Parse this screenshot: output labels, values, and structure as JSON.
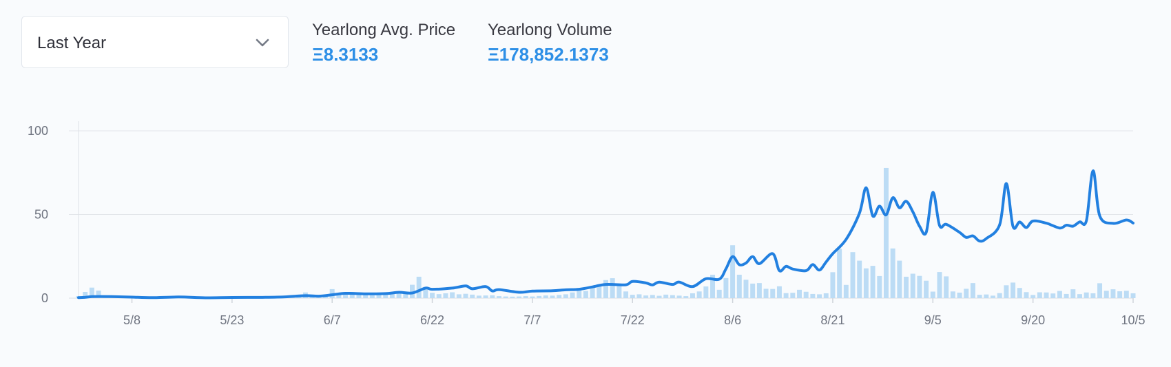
{
  "period_select": {
    "selected": "Last Year",
    "icon": "chevron-down-icon"
  },
  "stats": {
    "avg_price_label": "Yearlong Avg. Price",
    "avg_price_value": "Ξ8.3133",
    "volume_label": "Yearlong Volume",
    "volume_value": "Ξ178,852.1373"
  },
  "colors": {
    "line": "#2280e0",
    "bar": "#bcdcf5",
    "accent": "#2d8fe6"
  },
  "chart_data": {
    "type": "bar+line",
    "title": "",
    "xlabel": "",
    "ylabel": "",
    "ylim": [
      0,
      100
    ],
    "yticks": [
      0,
      50,
      100
    ],
    "grid": true,
    "x_start": "2023-04-30",
    "x_end": "2023-10-05",
    "xticks": [
      {
        "date": "2023-05-08",
        "label": "5/8"
      },
      {
        "date": "2023-05-23",
        "label": "5/23"
      },
      {
        "date": "2023-06-07",
        "label": "6/7"
      },
      {
        "date": "2023-06-22",
        "label": "6/22"
      },
      {
        "date": "2023-07-07",
        "label": "7/7"
      },
      {
        "date": "2023-07-22",
        "label": "7/22"
      },
      {
        "date": "2023-08-06",
        "label": "8/6"
      },
      {
        "date": "2023-08-21",
        "label": "8/21"
      },
      {
        "date": "2023-09-05",
        "label": "9/5"
      },
      {
        "date": "2023-09-20",
        "label": "9/20"
      },
      {
        "date": "2023-10-05",
        "label": "10/5"
      }
    ],
    "series": [
      {
        "type": "line",
        "points": [
          [
            "2023-04-30",
            0.3
          ],
          [
            "2023-05-01",
            0.5
          ],
          [
            "2023-05-02",
            0.9
          ],
          [
            "2023-05-03",
            1.0
          ],
          [
            "2023-05-05",
            0.9
          ],
          [
            "2023-05-08",
            0.6
          ],
          [
            "2023-05-11",
            0.3
          ],
          [
            "2023-05-15",
            0.7
          ],
          [
            "2023-05-19",
            0.2
          ],
          [
            "2023-05-23",
            0.4
          ],
          [
            "2023-05-28",
            0.5
          ],
          [
            "2023-05-31",
            0.8
          ],
          [
            "2023-06-03",
            1.5
          ],
          [
            "2023-06-05",
            1.2
          ],
          [
            "2023-06-07",
            2.0
          ],
          [
            "2023-06-09",
            2.9
          ],
          [
            "2023-06-12",
            2.6
          ],
          [
            "2023-06-15",
            2.7
          ],
          [
            "2023-06-17",
            3.5
          ],
          [
            "2023-06-19",
            3.1
          ],
          [
            "2023-06-21",
            6.0
          ],
          [
            "2023-06-22",
            5.3
          ],
          [
            "2023-06-25",
            6.0
          ],
          [
            "2023-06-27",
            7.3
          ],
          [
            "2023-06-28",
            5.6
          ],
          [
            "2023-06-30",
            6.9
          ],
          [
            "2023-07-01",
            4.3
          ],
          [
            "2023-07-02",
            5.1
          ],
          [
            "2023-07-05",
            3.5
          ],
          [
            "2023-07-07",
            4.2
          ],
          [
            "2023-07-10",
            4.4
          ],
          [
            "2023-07-12",
            5.0
          ],
          [
            "2023-07-14",
            5.3
          ],
          [
            "2023-07-16",
            6.7
          ],
          [
            "2023-07-18",
            8.2
          ],
          [
            "2023-07-21",
            8.0
          ],
          [
            "2023-07-22",
            10.0
          ],
          [
            "2023-07-24",
            9.1
          ],
          [
            "2023-07-25",
            7.9
          ],
          [
            "2023-07-26",
            9.6
          ],
          [
            "2023-07-28",
            8.2
          ],
          [
            "2023-07-29",
            9.6
          ],
          [
            "2023-07-31",
            6.9
          ],
          [
            "2023-08-02",
            11.6
          ],
          [
            "2023-08-04",
            11.3
          ],
          [
            "2023-08-05",
            17.5
          ],
          [
            "2023-08-06",
            24.8
          ],
          [
            "2023-08-07",
            20.0
          ],
          [
            "2023-08-08",
            21.0
          ],
          [
            "2023-08-09",
            24.8
          ],
          [
            "2023-08-10",
            20.6
          ],
          [
            "2023-08-12",
            26.6
          ],
          [
            "2023-08-13",
            16.4
          ],
          [
            "2023-08-14",
            19.0
          ],
          [
            "2023-08-15",
            17.4
          ],
          [
            "2023-08-17",
            16.4
          ],
          [
            "2023-08-18",
            20.1
          ],
          [
            "2023-08-19",
            16.8
          ],
          [
            "2023-08-20",
            21.6
          ],
          [
            "2023-08-21",
            26.6
          ],
          [
            "2023-08-23",
            35.1
          ],
          [
            "2023-08-25",
            50.8
          ],
          [
            "2023-08-26",
            66.0
          ],
          [
            "2023-08-27",
            49.1
          ],
          [
            "2023-08-28",
            55.0
          ],
          [
            "2023-08-29",
            49.8
          ],
          [
            "2023-08-30",
            60.0
          ],
          [
            "2023-08-31",
            54.0
          ],
          [
            "2023-09-01",
            57.9
          ],
          [
            "2023-09-02",
            51.6
          ],
          [
            "2023-09-03",
            43.0
          ],
          [
            "2023-09-04",
            39.3
          ],
          [
            "2023-09-05",
            63.2
          ],
          [
            "2023-09-06",
            43.4
          ],
          [
            "2023-09-07",
            44.1
          ],
          [
            "2023-09-09",
            39.3
          ],
          [
            "2023-09-10",
            36.3
          ],
          [
            "2023-09-11",
            37.2
          ],
          [
            "2023-09-12",
            34.1
          ],
          [
            "2023-09-13",
            35.6
          ],
          [
            "2023-09-15",
            43.8
          ],
          [
            "2023-09-16",
            68.5
          ],
          [
            "2023-09-17",
            42.9
          ],
          [
            "2023-09-18",
            45.5
          ],
          [
            "2023-09-19",
            42.2
          ],
          [
            "2023-09-20",
            46.1
          ],
          [
            "2023-09-22",
            44.8
          ],
          [
            "2023-09-24",
            41.9
          ],
          [
            "2023-09-25",
            43.6
          ],
          [
            "2023-09-26",
            43.0
          ],
          [
            "2023-09-27",
            45.6
          ],
          [
            "2023-09-28",
            46.3
          ],
          [
            "2023-09-29",
            76.1
          ],
          [
            "2023-09-30",
            49.1
          ],
          [
            "2023-10-02",
            44.7
          ],
          [
            "2023-10-04",
            46.7
          ],
          [
            "2023-10-05",
            44.9
          ]
        ]
      },
      {
        "type": "bar",
        "points": [
          [
            "2023-04-30",
            1.2
          ],
          [
            "2023-05-01",
            3.7
          ],
          [
            "2023-05-02",
            6.3
          ],
          [
            "2023-05-03",
            4.5
          ],
          [
            "2023-05-04",
            1.2
          ],
          [
            "2023-05-05",
            0.8
          ],
          [
            "2023-05-06",
            0.6
          ],
          [
            "2023-05-07",
            0.5
          ],
          [
            "2023-05-08",
            0.6
          ],
          [
            "2023-05-09",
            0.5
          ],
          [
            "2023-05-10",
            0.3
          ],
          [
            "2023-05-11",
            0.4
          ],
          [
            "2023-05-12",
            0.3
          ],
          [
            "2023-05-13",
            0.5
          ],
          [
            "2023-05-14",
            0.4
          ],
          [
            "2023-05-15",
            0.3
          ],
          [
            "2023-05-16",
            0.2
          ],
          [
            "2023-05-17",
            0.3
          ],
          [
            "2023-05-18",
            0.4
          ],
          [
            "2023-05-19",
            0.2
          ],
          [
            "2023-05-20",
            0.3
          ],
          [
            "2023-05-21",
            0.4
          ],
          [
            "2023-05-22",
            0.3
          ],
          [
            "2023-05-23",
            0.5
          ],
          [
            "2023-05-24",
            0.4
          ],
          [
            "2023-05-25",
            0.3
          ],
          [
            "2023-05-26",
            0.4
          ],
          [
            "2023-05-27",
            0.6
          ],
          [
            "2023-05-28",
            0.7
          ],
          [
            "2023-05-29",
            0.5
          ],
          [
            "2023-05-30",
            0.6
          ],
          [
            "2023-05-31",
            1.0
          ],
          [
            "2023-06-01",
            1.4
          ],
          [
            "2023-06-02",
            2.1
          ],
          [
            "2023-06-03",
            3.4
          ],
          [
            "2023-06-04",
            1.8
          ],
          [
            "2023-06-05",
            1.2
          ],
          [
            "2023-06-06",
            1.5
          ],
          [
            "2023-06-07",
            5.4
          ],
          [
            "2023-06-08",
            2.9
          ],
          [
            "2023-06-09",
            2.0
          ],
          [
            "2023-06-10",
            2.2
          ],
          [
            "2023-06-11",
            1.9
          ],
          [
            "2023-06-12",
            2.4
          ],
          [
            "2023-06-13",
            1.7
          ],
          [
            "2023-06-14",
            2.0
          ],
          [
            "2023-06-15",
            2.6
          ],
          [
            "2023-06-16",
            2.9
          ],
          [
            "2023-06-17",
            3.2
          ],
          [
            "2023-06-18",
            2.7
          ],
          [
            "2023-06-19",
            8.0
          ],
          [
            "2023-06-20",
            12.8
          ],
          [
            "2023-06-21",
            6.7
          ],
          [
            "2023-06-22",
            3.2
          ],
          [
            "2023-06-23",
            2.4
          ],
          [
            "2023-06-24",
            2.9
          ],
          [
            "2023-06-25",
            3.5
          ],
          [
            "2023-06-26",
            2.3
          ],
          [
            "2023-06-27",
            2.6
          ],
          [
            "2023-06-28",
            2.1
          ],
          [
            "2023-06-29",
            1.5
          ],
          [
            "2023-06-30",
            1.6
          ],
          [
            "2023-07-01",
            1.7
          ],
          [
            "2023-07-02",
            1.2
          ],
          [
            "2023-07-03",
            1.0
          ],
          [
            "2023-07-04",
            0.9
          ],
          [
            "2023-07-05",
            1.0
          ],
          [
            "2023-07-06",
            1.2
          ],
          [
            "2023-07-07",
            1.0
          ],
          [
            "2023-07-08",
            1.3
          ],
          [
            "2023-07-09",
            1.6
          ],
          [
            "2023-07-10",
            1.5
          ],
          [
            "2023-07-11",
            1.9
          ],
          [
            "2023-07-12",
            2.3
          ],
          [
            "2023-07-13",
            3.4
          ],
          [
            "2023-07-14",
            5.5
          ],
          [
            "2023-07-15",
            4.3
          ],
          [
            "2023-07-16",
            7.0
          ],
          [
            "2023-07-17",
            8.3
          ],
          [
            "2023-07-18",
            10.8
          ],
          [
            "2023-07-19",
            11.9
          ],
          [
            "2023-07-20",
            8.5
          ],
          [
            "2023-07-21",
            4.0
          ],
          [
            "2023-07-22",
            2.0
          ],
          [
            "2023-07-23",
            2.3
          ],
          [
            "2023-07-24",
            1.6
          ],
          [
            "2023-07-25",
            1.9
          ],
          [
            "2023-07-26",
            1.4
          ],
          [
            "2023-07-27",
            2.1
          ],
          [
            "2023-07-28",
            1.8
          ],
          [
            "2023-07-29",
            1.5
          ],
          [
            "2023-07-30",
            1.2
          ],
          [
            "2023-07-31",
            2.9
          ],
          [
            "2023-08-01",
            4.0
          ],
          [
            "2023-08-02",
            7.0
          ],
          [
            "2023-08-03",
            14.0
          ],
          [
            "2023-08-04",
            5.0
          ],
          [
            "2023-08-05",
            12.0
          ],
          [
            "2023-08-06",
            31.6
          ],
          [
            "2023-08-07",
            14.0
          ],
          [
            "2023-08-08",
            11.0
          ],
          [
            "2023-08-09",
            8.7
          ],
          [
            "2023-08-10",
            9.0
          ],
          [
            "2023-08-11",
            5.6
          ],
          [
            "2023-08-12",
            5.5
          ],
          [
            "2023-08-13",
            7.1
          ],
          [
            "2023-08-14",
            3.0
          ],
          [
            "2023-08-15",
            3.2
          ],
          [
            "2023-08-16",
            5.0
          ],
          [
            "2023-08-17",
            3.8
          ],
          [
            "2023-08-18",
            2.5
          ],
          [
            "2023-08-19",
            2.3
          ],
          [
            "2023-08-20",
            2.9
          ],
          [
            "2023-08-21",
            15.5
          ],
          [
            "2023-08-22",
            29.5
          ],
          [
            "2023-08-23",
            7.9
          ],
          [
            "2023-08-24",
            27.5
          ],
          [
            "2023-08-25",
            22.4
          ],
          [
            "2023-08-26",
            17.8
          ],
          [
            "2023-08-27",
            19.3
          ],
          [
            "2023-08-28",
            13.2
          ],
          [
            "2023-08-29",
            77.8
          ],
          [
            "2023-08-30",
            29.7
          ],
          [
            "2023-08-31",
            22.4
          ],
          [
            "2023-09-01",
            12.8
          ],
          [
            "2023-09-02",
            14.6
          ],
          [
            "2023-09-03",
            13.3
          ],
          [
            "2023-09-04",
            10.4
          ],
          [
            "2023-09-05",
            3.9
          ],
          [
            "2023-09-06",
            15.6
          ],
          [
            "2023-09-07",
            13.0
          ],
          [
            "2023-09-08",
            4.0
          ],
          [
            "2023-09-09",
            3.3
          ],
          [
            "2023-09-10",
            5.6
          ],
          [
            "2023-09-11",
            9.0
          ],
          [
            "2023-09-12",
            2.0
          ],
          [
            "2023-09-13",
            2.2
          ],
          [
            "2023-09-14",
            1.5
          ],
          [
            "2023-09-15",
            3.0
          ],
          [
            "2023-09-16",
            7.7
          ],
          [
            "2023-09-17",
            9.3
          ],
          [
            "2023-09-18",
            6.1
          ],
          [
            "2023-09-19",
            3.6
          ],
          [
            "2023-09-20",
            1.9
          ],
          [
            "2023-09-21",
            3.5
          ],
          [
            "2023-09-22",
            3.4
          ],
          [
            "2023-09-23",
            2.8
          ],
          [
            "2023-09-24",
            4.3
          ],
          [
            "2023-09-25",
            2.5
          ],
          [
            "2023-09-26",
            5.3
          ],
          [
            "2023-09-27",
            2.4
          ],
          [
            "2023-09-28",
            3.4
          ],
          [
            "2023-09-29",
            2.9
          ],
          [
            "2023-09-30",
            8.9
          ],
          [
            "2023-10-01",
            4.4
          ],
          [
            "2023-10-02",
            5.3
          ],
          [
            "2023-10-03",
            4.1
          ],
          [
            "2023-10-04",
            4.4
          ],
          [
            "2023-10-05",
            2.9
          ]
        ]
      }
    ]
  }
}
